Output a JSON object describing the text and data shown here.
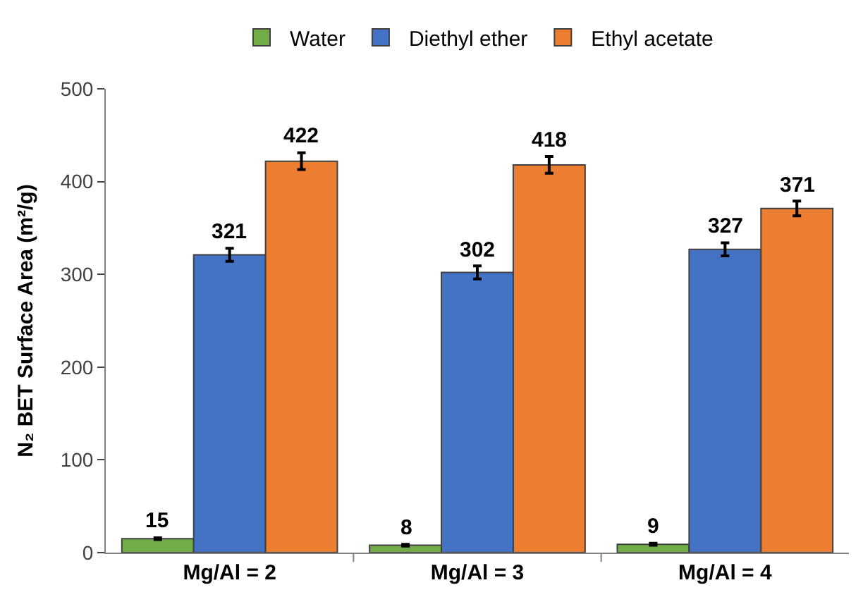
{
  "chart_data": {
    "type": "bar",
    "ylabel": "N₂ BET Surface Area (m²/g)",
    "categories": [
      "Mg/Al = 2",
      "Mg/Al = 3",
      "Mg/Al = 4"
    ],
    "series": [
      {
        "name": "Water",
        "color": "#70ad47",
        "values": [
          15,
          8,
          9
        ],
        "errors": [
          1,
          1,
          1
        ]
      },
      {
        "name": "Diethyl ether",
        "color": "#4472c4",
        "values": [
          321,
          302,
          327
        ],
        "errors": [
          7,
          7,
          7
        ]
      },
      {
        "name": "Ethyl acetate",
        "color": "#ed7d31",
        "values": [
          422,
          418,
          371
        ],
        "errors": [
          9,
          9,
          8
        ]
      }
    ],
    "ylim": [
      0,
      500
    ],
    "yticks": [
      0,
      100,
      200,
      300,
      400,
      500
    ],
    "legend": "top",
    "data_labels": true
  }
}
